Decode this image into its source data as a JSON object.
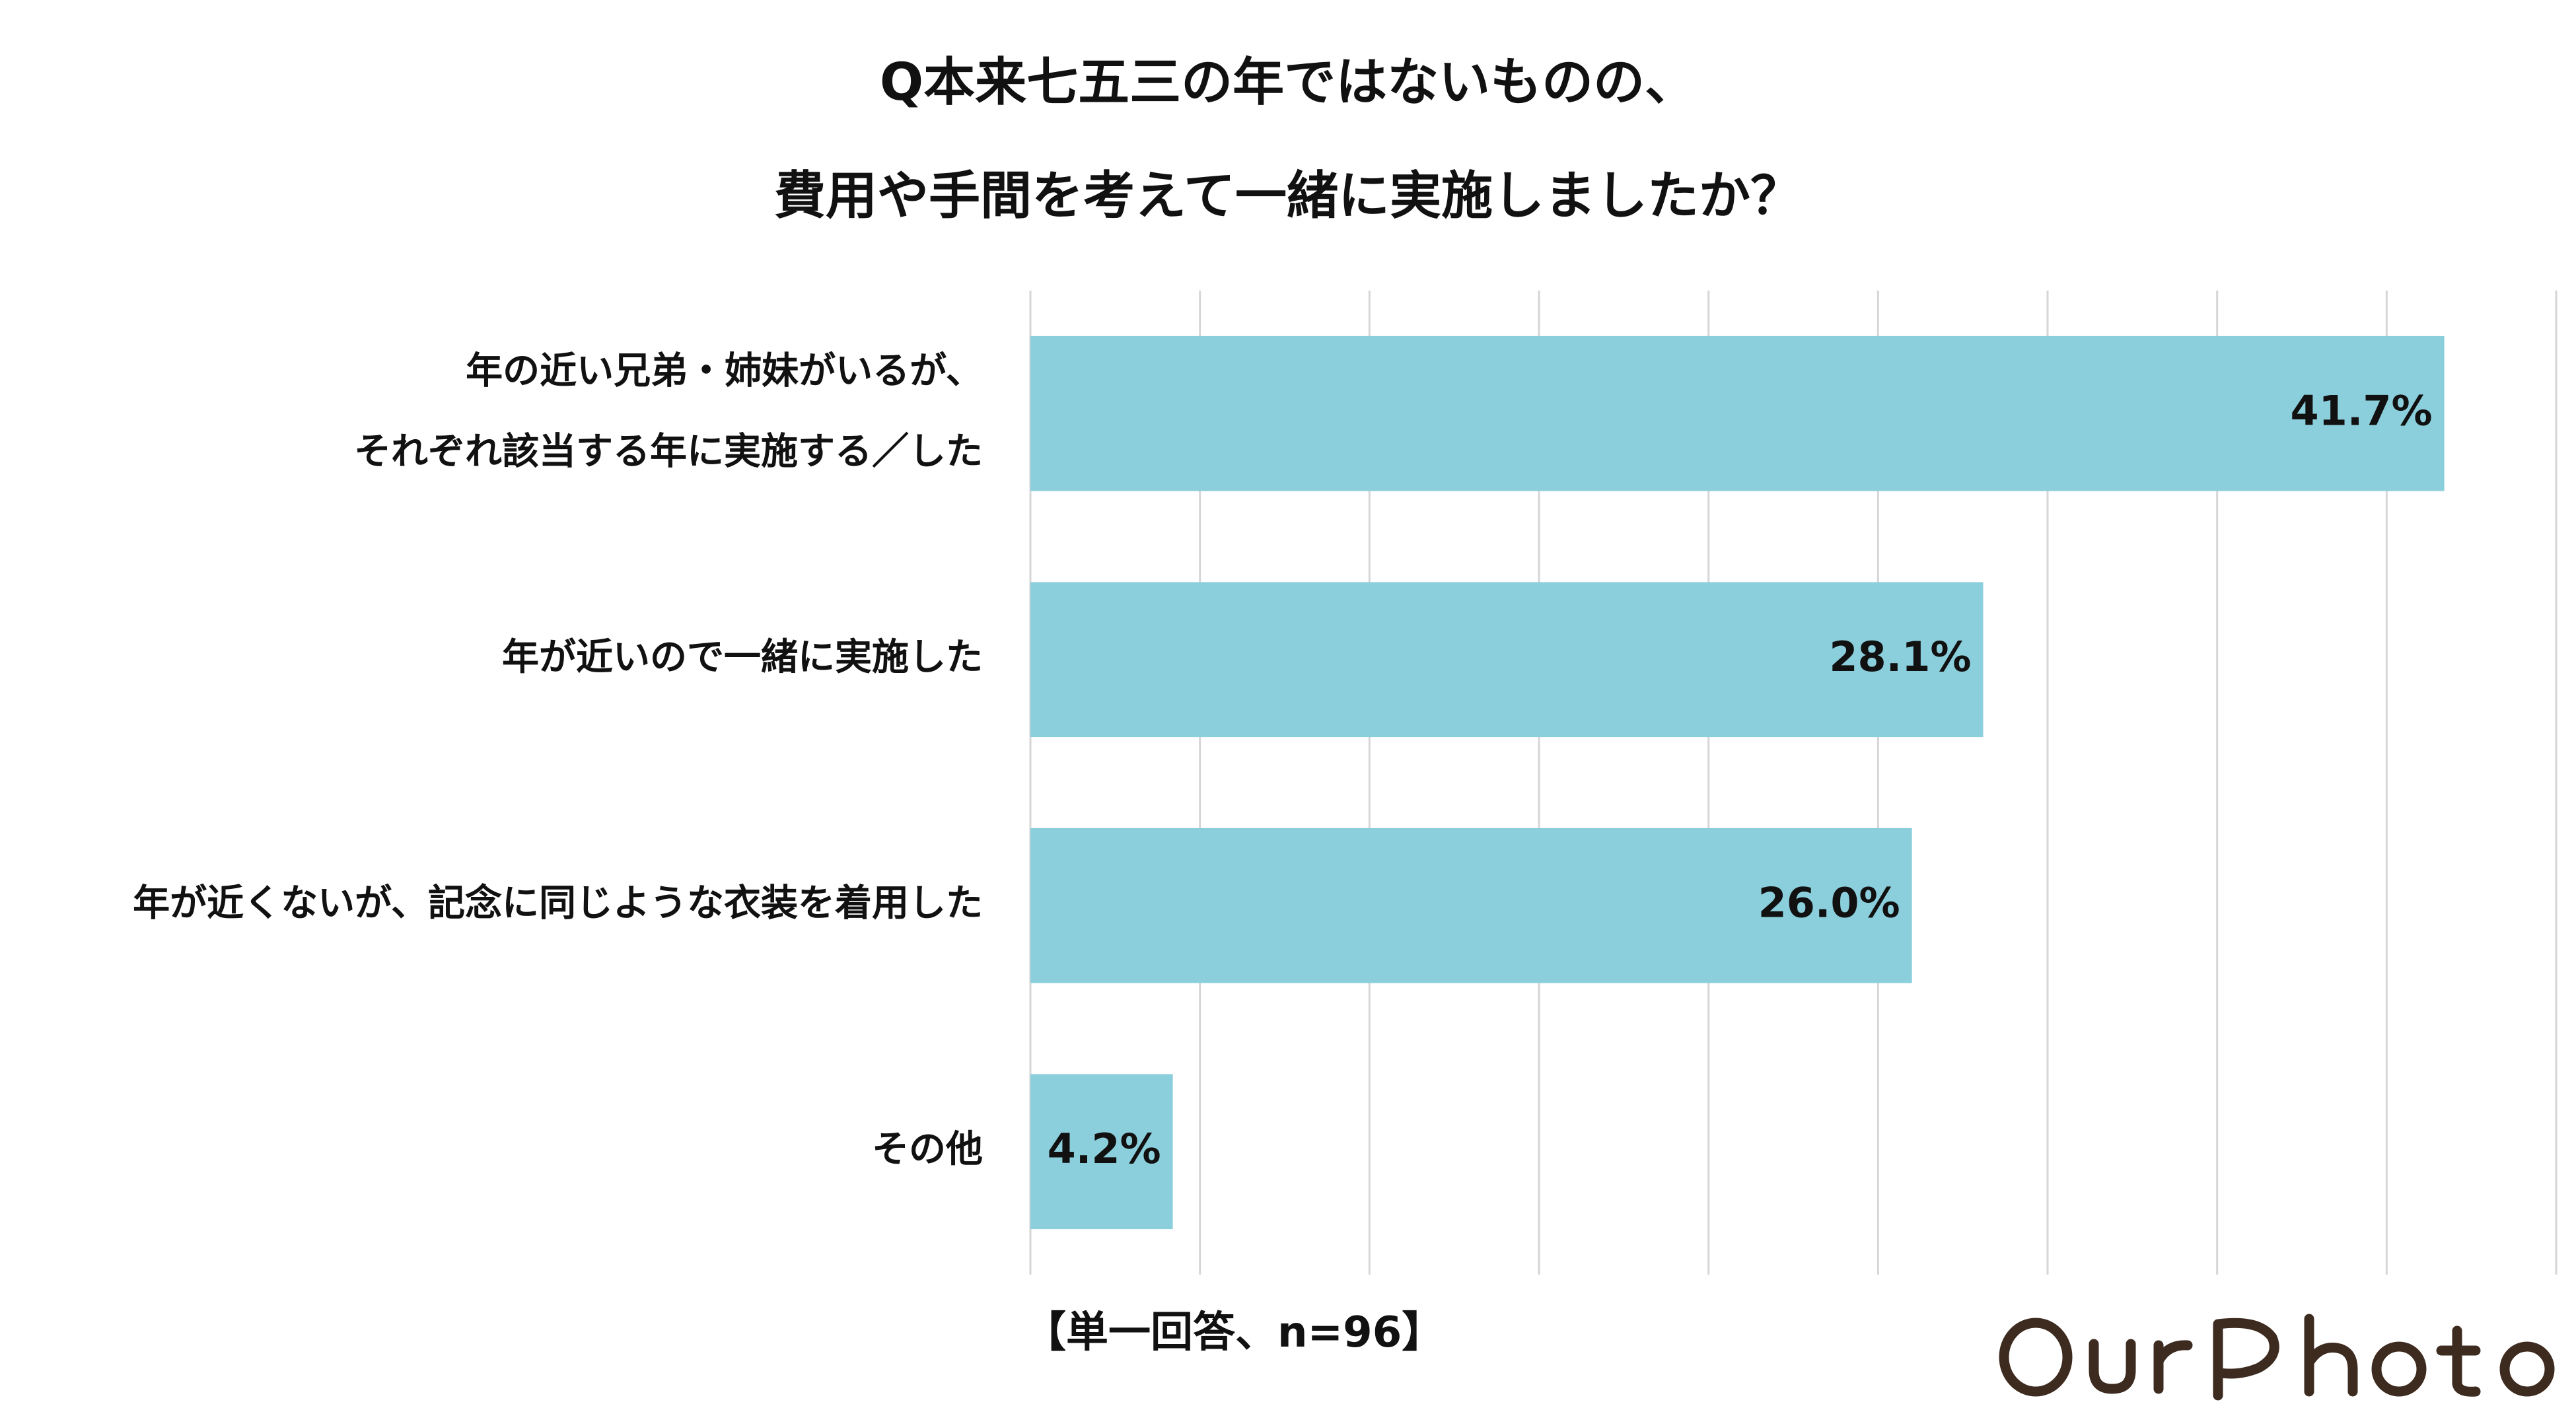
{
  "title": {
    "line1": "Q本来七五三の年ではないものの、",
    "line2": "費用や手間を考えて一緒に実施しましたか？"
  },
  "footnote": "【単一回答、n=96】",
  "logo_text": "OurPhoto",
  "colors": {
    "bar": "#8ccfdc",
    "grid": "#d6d6d6",
    "text": "#111111",
    "logo": "#3d2b20"
  },
  "chart_data": {
    "type": "bar",
    "orientation": "horizontal",
    "categories": [
      [
        "年の近い兄弟・姉妹がいるが、",
        "それぞれ該当する年に実施する／した"
      ],
      [
        "年が近いので一緒に実施した"
      ],
      [
        "年が近くないが、記念に同じような衣装を着用した"
      ],
      [
        "その他"
      ]
    ],
    "values": [
      41.7,
      28.1,
      26.0,
      4.2
    ],
    "value_labels": [
      "41.7%",
      "28.1%",
      "26.0%",
      "4.2%"
    ],
    "unit": "%",
    "xlim": [
      0,
      45
    ],
    "grid_step": 5,
    "grid": true,
    "legend": "none"
  }
}
